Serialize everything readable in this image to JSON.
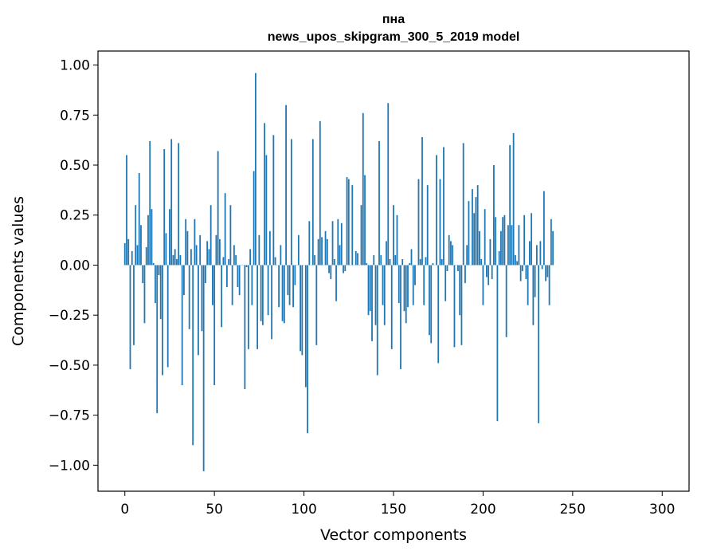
{
  "chart_data": {
    "type": "bar",
    "title_line1": "пна",
    "title_line2": "news_upos_skipgram_300_5_2019 model",
    "xlabel": "Vector components",
    "ylabel": "Components values",
    "xlim": [
      -15,
      315
    ],
    "ylim": [
      -1.13,
      1.07
    ],
    "x_ticks": [
      0,
      50,
      100,
      150,
      200,
      250,
      300
    ],
    "x_tick_labels": [
      "0",
      "50",
      "100",
      "150",
      "200",
      "250",
      "300"
    ],
    "y_ticks": [
      1.0,
      0.75,
      0.5,
      0.25,
      0.0,
      -0.25,
      -0.5,
      -0.75,
      -1.0
    ],
    "y_tick_labels": [
      "1.00",
      "0.75",
      "0.50",
      "0.25",
      "0.00",
      "−0.25",
      "−0.50",
      "−0.75",
      "−1.00"
    ],
    "bar_color": "#1f77b4",
    "values": [
      0.11,
      0.55,
      0.13,
      -0.52,
      0.07,
      -0.4,
      0.3,
      0.1,
      0.46,
      0.2,
      -0.09,
      -0.29,
      0.09,
      0.25,
      0.62,
      0.28,
      0.01,
      -0.19,
      -0.74,
      -0.05,
      -0.27,
      -0.55,
      0.58,
      0.16,
      -0.51,
      0.28,
      0.63,
      0.05,
      0.08,
      0.03,
      0.61,
      0.05,
      -0.6,
      -0.15,
      0.23,
      0.17,
      -0.32,
      0.08,
      -0.9,
      0.23,
      0.1,
      -0.45,
      0.15,
      -0.33,
      -1.03,
      -0.09,
      0.12,
      0.08,
      0.3,
      -0.2,
      -0.6,
      0.15,
      0.57,
      0.13,
      -0.31,
      0.04,
      0.36,
      -0.11,
      0.03,
      0.3,
      -0.2,
      0.1,
      0.05,
      -0.11,
      -0.15,
      0.0,
      0.0,
      -0.62,
      -0.01,
      -0.42,
      0.08,
      -0.2,
      0.47,
      0.96,
      -0.42,
      0.15,
      -0.28,
      -0.3,
      0.71,
      0.55,
      -0.25,
      0.17,
      -0.37,
      0.65,
      0.04,
      0.0,
      -0.21,
      0.1,
      -0.28,
      -0.29,
      0.8,
      -0.15,
      -0.2,
      0.63,
      -0.21,
      -0.1,
      0.0,
      0.15,
      -0.43,
      -0.45,
      0.0,
      -0.61,
      -0.84,
      0.22,
      0.0,
      0.63,
      0.05,
      -0.4,
      0.13,
      0.72,
      0.14,
      0.0,
      0.17,
      0.13,
      -0.04,
      -0.07,
      0.22,
      0.03,
      -0.18,
      0.23,
      0.1,
      0.21,
      -0.04,
      -0.03,
      0.44,
      0.43,
      0.0,
      0.4,
      0.0,
      0.07,
      0.06,
      0.0,
      0.3,
      0.76,
      0.45,
      0.01,
      -0.25,
      -0.23,
      -0.38,
      0.05,
      -0.3,
      -0.55,
      0.62,
      0.05,
      -0.2,
      -0.3,
      0.12,
      0.81,
      0.03,
      -0.42,
      0.3,
      0.05,
      0.25,
      -0.19,
      -0.52,
      0.03,
      -0.23,
      -0.29,
      -0.21,
      0.01,
      0.08,
      -0.2,
      -0.1,
      0.0,
      0.43,
      0.03,
      0.64,
      -0.2,
      0.04,
      0.4,
      -0.35,
      -0.39,
      0.01,
      0.0,
      0.55,
      -0.49,
      0.43,
      0.03,
      0.59,
      -0.18,
      -0.03,
      0.15,
      0.12,
      0.1,
      -0.41,
      0.0,
      -0.03,
      -0.25,
      -0.4,
      0.61,
      -0.09,
      0.1,
      0.32,
      0.0,
      0.38,
      0.26,
      0.34,
      0.4,
      0.17,
      0.03,
      -0.2,
      0.28,
      -0.06,
      -0.1,
      0.13,
      -0.07,
      0.5,
      0.24,
      -0.78,
      0.07,
      0.17,
      0.24,
      0.25,
      -0.36,
      0.2,
      0.6,
      0.2,
      0.66,
      0.05,
      0.02,
      0.2,
      -0.08,
      -0.03,
      0.25,
      -0.07,
      -0.2,
      0.12,
      0.26,
      -0.3,
      -0.16,
      0.1,
      -0.79,
      0.12,
      -0.02,
      0.37,
      -0.08,
      -0.06,
      -0.2,
      0.23,
      0.17
    ]
  }
}
